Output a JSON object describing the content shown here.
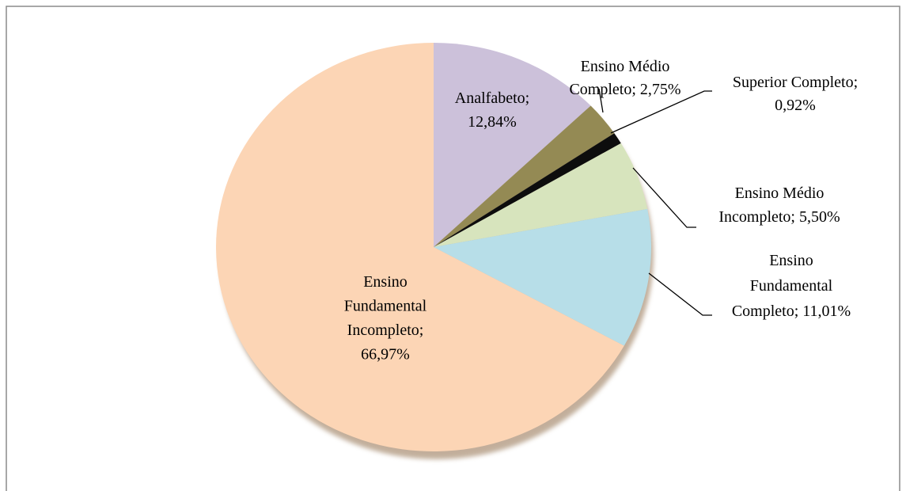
{
  "chart_data": {
    "type": "pie",
    "labels": [
      "Analfabeto; 12,84%",
      "Ensino Médio Completo; 2,75%",
      "Superior Completo; 0,92%",
      "Ensino Médio Incompleto; 5,50%",
      "Ensino Fundamental Completo; 11,01%",
      "Ensino Fundamental Incompleto; 66,97%"
    ],
    "values": [
      12.84,
      2.75,
      0.92,
      5.5,
      11.01,
      66.97
    ],
    "colors": [
      "#ccc1da",
      "#948a54",
      "#0d0d0d",
      "#d7e4bd",
      "#b7dee8",
      "#fcd5b5"
    ]
  }
}
